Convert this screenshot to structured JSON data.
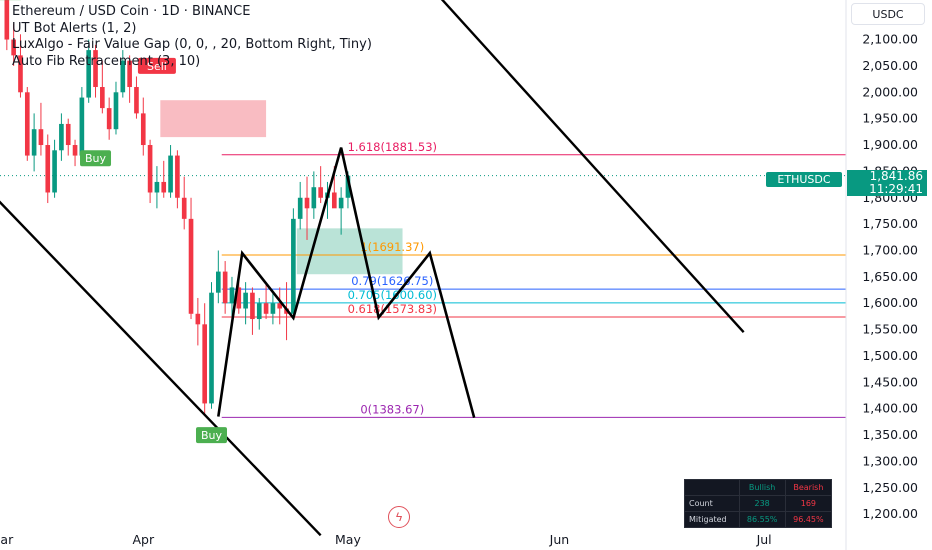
{
  "legend": {
    "title": "Ethereum / USD Coin · 1D · BINANCE",
    "ind1": "UT Bot Alerts (1, 2)",
    "ind2": "LuxAlgo - Fair Value Gap (0, 0, , 20, Bottom Right, Tiny)",
    "ind3": "Auto Fib Retracement (3, 10)"
  },
  "currency_button": "USDC",
  "symbol_tag": "ETHUSDC",
  "current_price": "1,841.86",
  "countdown": "11:29:41",
  "stats_table": {
    "headers": [
      "",
      "Bullish",
      "Bearish"
    ],
    "rows": [
      {
        "label": "Count",
        "bullish": "238",
        "bearish": "169"
      },
      {
        "label": "Mitigated",
        "bullish": "86.55%",
        "bearish": "96.45%"
      }
    ]
  },
  "chart_data": {
    "type": "candlestick",
    "title": "Ethereum / USD Coin · 1D · BINANCE",
    "y_ticks": [
      "2,100.00",
      "2,050.00",
      "2,000.00",
      "1,950.00",
      "1,900.00",
      "1,850.00",
      "1,800.00",
      "1,750.00",
      "1,700.00",
      "1,650.00",
      "1,600.00",
      "1,550.00",
      "1,500.00",
      "1,450.00",
      "1,400.00",
      "1,350.00",
      "1,300.00",
      "1,250.00",
      "1,200.00"
    ],
    "y_tick_values": [
      2100,
      2050,
      2000,
      1950,
      1900,
      1850,
      1800,
      1750,
      1700,
      1650,
      1600,
      1550,
      1500,
      1450,
      1400,
      1350,
      1300,
      1250,
      1200
    ],
    "ylim": [
      1170,
      2175
    ],
    "x_ticks": [
      {
        "label": "ar",
        "day": 0
      },
      {
        "label": "Apr",
        "day": 20
      },
      {
        "label": "May",
        "day": 50
      },
      {
        "label": "Jun",
        "day": 81
      },
      {
        "label": "Jul",
        "day": 111
      }
    ],
    "xlim": [
      -1,
      123
    ],
    "candles": [
      [
        2175,
        2180,
        2080,
        2100
      ],
      [
        2100,
        2130,
        2050,
        2070
      ],
      [
        2070,
        2110,
        1990,
        2000
      ],
      [
        2000,
        2010,
        1870,
        1880
      ],
      [
        1880,
        1960,
        1850,
        1930
      ],
      [
        1930,
        1980,
        1880,
        1900
      ],
      [
        1900,
        1920,
        1790,
        1810
      ],
      [
        1810,
        1910,
        1800,
        1890
      ],
      [
        1890,
        1960,
        1870,
        1940
      ],
      [
        1940,
        1950,
        1880,
        1900
      ],
      [
        1900,
        1910,
        1860,
        1880
      ],
      [
        1880,
        2010,
        1870,
        1990
      ],
      [
        1990,
        2100,
        1980,
        2080
      ],
      [
        2080,
        2090,
        1990,
        2010
      ],
      [
        2010,
        2060,
        1960,
        1970
      ],
      [
        1970,
        1990,
        1910,
        1930
      ],
      [
        1930,
        2020,
        1920,
        2000
      ],
      [
        2000,
        2080,
        1990,
        2060
      ],
      [
        2060,
        2070,
        1980,
        2010
      ],
      [
        2010,
        2030,
        1950,
        1960
      ],
      [
        1960,
        1990,
        1880,
        1900
      ],
      [
        1900,
        1910,
        1790,
        1810
      ],
      [
        1810,
        1860,
        1780,
        1830
      ],
      [
        1830,
        1870,
        1800,
        1810
      ],
      [
        1810,
        1900,
        1800,
        1880
      ],
      [
        1880,
        1890,
        1780,
        1800
      ],
      [
        1800,
        1840,
        1740,
        1760
      ],
      [
        1760,
        1800,
        1570,
        1580
      ],
      [
        1580,
        1610,
        1520,
        1560
      ],
      [
        1560,
        1600,
        1390,
        1410
      ],
      [
        1410,
        1640,
        1400,
        1620
      ],
      [
        1620,
        1700,
        1600,
        1660
      ],
      [
        1660,
        1680,
        1580,
        1600
      ],
      [
        1600,
        1650,
        1570,
        1630
      ],
      [
        1630,
        1660,
        1580,
        1590
      ],
      [
        1590,
        1640,
        1560,
        1620
      ],
      [
        1620,
        1630,
        1540,
        1570
      ],
      [
        1570,
        1610,
        1550,
        1600
      ],
      [
        1600,
        1640,
        1570,
        1580
      ],
      [
        1580,
        1620,
        1560,
        1600
      ],
      [
        1600,
        1630,
        1560,
        1590
      ],
      [
        1590,
        1640,
        1530,
        1580
      ],
      [
        1580,
        1780,
        1570,
        1760
      ],
      [
        1760,
        1830,
        1740,
        1800
      ],
      [
        1800,
        1840,
        1720,
        1780
      ],
      [
        1780,
        1850,
        1760,
        1820
      ],
      [
        1820,
        1860,
        1790,
        1800
      ],
      [
        1800,
        1830,
        1760,
        1810
      ],
      [
        1810,
        1860,
        1790,
        1780
      ],
      [
        1780,
        1820,
        1730,
        1800
      ],
      [
        1800,
        1850,
        1780,
        1841.86
      ]
    ],
    "fib_levels": [
      {
        "label": "1.618(1881.53)",
        "value": 1881.53,
        "color": "#e91e63"
      },
      {
        "label": "1(1691.37)",
        "value": 1691.37,
        "color": "#ff9800"
      },
      {
        "label": "0.79(1626.75)",
        "value": 1626.75,
        "color": "#2962ff"
      },
      {
        "label": "0.705(1600.60)",
        "value": 1600.6,
        "color": "#00bcd4"
      },
      {
        "label": "0.618(1573.83)",
        "value": 1573.83,
        "color": "#f23645"
      },
      {
        "label": "0(1383.67)",
        "value": 1383.67,
        "color": "#9c27b0"
      }
    ],
    "fair_value_gaps": [
      {
        "type": "bearish",
        "x0": 22.5,
        "x1": 38,
        "y0": 1915,
        "y1": 1985,
        "color": "#f7a5ad"
      },
      {
        "type": "bullish",
        "x0": 42.5,
        "x1": 58,
        "y0": 1655,
        "y1": 1742,
        "color": "#a3d9c9"
      }
    ],
    "signals": [
      {
        "label": "Buy",
        "day": 0,
        "value": 2190,
        "color": "#4caf50"
      },
      {
        "label": "Sell",
        "day": 22,
        "value": 2050,
        "color": "#f23645"
      },
      {
        "label": "Buy",
        "day": 13,
        "value": 1875,
        "color": "#4caf50"
      },
      {
        "label": "Buy",
        "day": 30,
        "value": 1350,
        "color": "#4caf50"
      }
    ],
    "pattern_path": [
      [
        31,
        1385
      ],
      [
        34.5,
        1695
      ],
      [
        42,
        1572
      ],
      [
        49,
        1895
      ],
      [
        54.5,
        1573
      ],
      [
        62,
        1695
      ],
      [
        68.5,
        1383
      ]
    ],
    "channel_lines": [
      [
        [
          -2,
          1805
        ],
        [
          46,
          1160
        ]
      ],
      [
        [
          60,
          2230
        ],
        [
          108,
          1545
        ]
      ]
    ],
    "current_price_value": 1841.86
  }
}
